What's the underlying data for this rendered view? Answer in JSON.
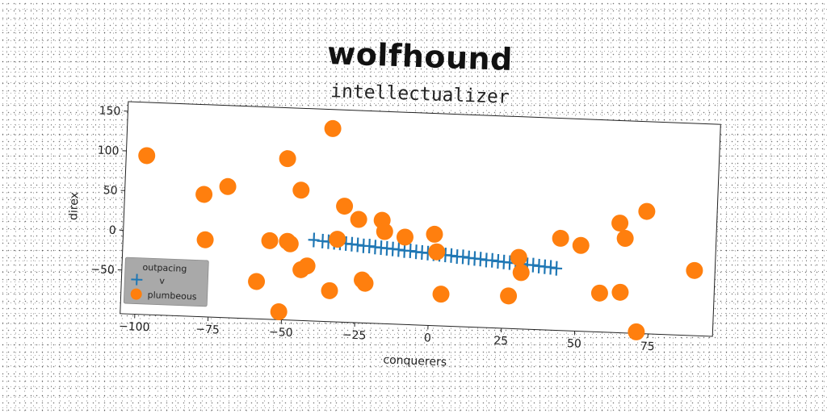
{
  "chart_data": {
    "type": "scatter",
    "title": "wolfhound",
    "subtitle": "intellectualizer",
    "xlabel": "conquerers",
    "ylabel": "direx",
    "xlim": [
      -105,
      97
    ],
    "ylim": [
      -105,
      162
    ],
    "xticks": [
      -100,
      -75,
      -50,
      -25,
      0,
      25,
      50,
      75
    ],
    "yticks": [
      -50,
      0,
      50,
      100,
      150
    ],
    "xtick_labels": [
      "−100",
      "−75",
      "−50",
      "−25",
      "0",
      "25",
      "50",
      "75"
    ],
    "ytick_labels": [
      "−50",
      "0",
      "50",
      "100",
      "150"
    ],
    "grid": false,
    "legend": {
      "title": "outpacing",
      "placement": "lower-left",
      "entries": [
        "v",
        "plumbeous"
      ]
    },
    "series": [
      {
        "name": "v",
        "marker": "plus",
        "color": "#1f77b4",
        "x": [
          -40,
          -37,
          -35,
          -33,
          -31,
          -29,
          -27,
          -25,
          -23,
          -21,
          -19,
          -17,
          -15,
          -13,
          -11,
          -9,
          -7,
          -5,
          -3,
          -1,
          1,
          3,
          5,
          7,
          9,
          11,
          13,
          15,
          17,
          19,
          21,
          23,
          25,
          27,
          29,
          31,
          33,
          35,
          37,
          39,
          41,
          43
        ],
        "y": [
          -3,
          -4,
          -4.5,
          -5,
          -5.5,
          -6,
          -6.5,
          -7,
          -8,
          -8,
          -9,
          -9.5,
          -10,
          -10.5,
          -11,
          -12,
          -12,
          -13,
          -13.5,
          -14,
          -14.5,
          -15,
          -15.5,
          -16,
          -17,
          -17,
          -18,
          -18.5,
          -19,
          -20,
          -20,
          -21,
          -21.5,
          -22,
          -22.5,
          -23,
          -24,
          -24,
          -25,
          -25.5,
          -26,
          -27
        ]
      },
      {
        "name": "plumbeous",
        "marker": "circle",
        "color": "#ff7f0e",
        "x": [
          -98,
          -78,
          -77,
          -70,
          -59,
          -55,
          -51,
          -50,
          -49,
          -48,
          -45,
          -44,
          -42,
          -35,
          -34,
          -32,
          -30,
          -25,
          -23,
          -22,
          -17,
          -16,
          -9,
          1,
          2,
          4,
          27,
          30,
          31,
          44,
          51,
          58,
          64,
          65,
          66,
          71,
          73,
          90
        ],
        "y": [
          95,
          49,
          -8,
          60,
          -58,
          -6,
          -95,
          98,
          -6,
          -9,
          59,
          -41,
          -36,
          138,
          -66,
          -1,
          41,
          25,
          -51,
          -55,
          25,
          11,
          5,
          10,
          -12,
          -65,
          -64,
          -15,
          -34,
          11,
          3,
          -56,
          33,
          -54,
          14,
          -103,
          49,
          -23
        ]
      }
    ]
  }
}
